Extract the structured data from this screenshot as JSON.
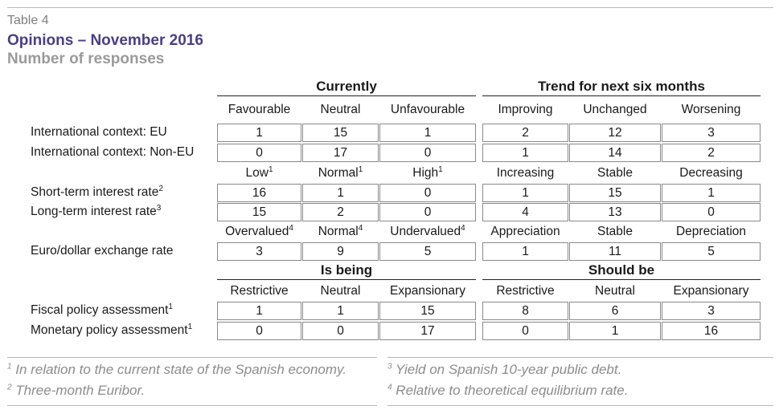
{
  "table_label": "Table 4",
  "title": "Opinions – November 2016",
  "subtitle": "Number of responses",
  "groups": {
    "currently": "Currently",
    "trend": "Trend for next six months",
    "is_being": "Is being",
    "should_be": "Should be"
  },
  "header_rows": [
    [
      "Favourable",
      "Neutral",
      "Unfavourable",
      "Improving",
      "Unchanged",
      "Worsening"
    ],
    [
      "Low",
      "Normal",
      "High",
      "Increasing",
      "Stable",
      "Decreasing"
    ],
    [
      "Overvalued",
      "Normal",
      "Undervalued",
      "Appreciation",
      "Stable",
      "Depreciation"
    ],
    [
      "Restrictive",
      "Neutral",
      "Expansionary",
      "Restrictive",
      "Neutral",
      "Expansionary"
    ]
  ],
  "header_sups": [
    [
      "",
      "",
      "",
      "",
      "",
      ""
    ],
    [
      "1",
      "1",
      "1",
      "",
      "",
      ""
    ],
    [
      "4",
      "4",
      "4",
      "",
      "",
      ""
    ],
    [
      "",
      "",
      "",
      "",
      "",
      ""
    ]
  ],
  "rows": [
    {
      "label": "International context: EU",
      "sup": "",
      "values": [
        "1",
        "15",
        "1",
        "2",
        "12",
        "3"
      ]
    },
    {
      "label": "International context: Non-EU",
      "sup": "",
      "values": [
        "0",
        "17",
        "0",
        "1",
        "14",
        "2"
      ]
    },
    {
      "label": "Short-term interest rate",
      "sup": "2",
      "values": [
        "16",
        "1",
        "0",
        "1",
        "15",
        "1"
      ]
    },
    {
      "label": "Long-term interest rate",
      "sup": "3",
      "values": [
        "15",
        "2",
        "0",
        "4",
        "13",
        "0"
      ]
    },
    {
      "label": "Euro/dollar exchange rate",
      "sup": "",
      "values": [
        "3",
        "9",
        "5",
        "1",
        "11",
        "5"
      ]
    },
    {
      "label": "Fiscal policy assessment",
      "sup": "1",
      "values": [
        "1",
        "1",
        "15",
        "8",
        "6",
        "3"
      ]
    },
    {
      "label": "Monetary policy assessment",
      "sup": "1",
      "values": [
        "0",
        "0",
        "17",
        "0",
        "1",
        "16"
      ]
    }
  ],
  "footnotes": [
    {
      "mark": "1",
      "text": "In relation to the current state of the Spanish economy."
    },
    {
      "mark": "2",
      "text": "Three-month Euribor."
    },
    {
      "mark": "3",
      "text": "Yield on Spanish 10-year public debt."
    },
    {
      "mark": "4",
      "text": "Relative to theoretical equilibrium rate."
    }
  ]
}
